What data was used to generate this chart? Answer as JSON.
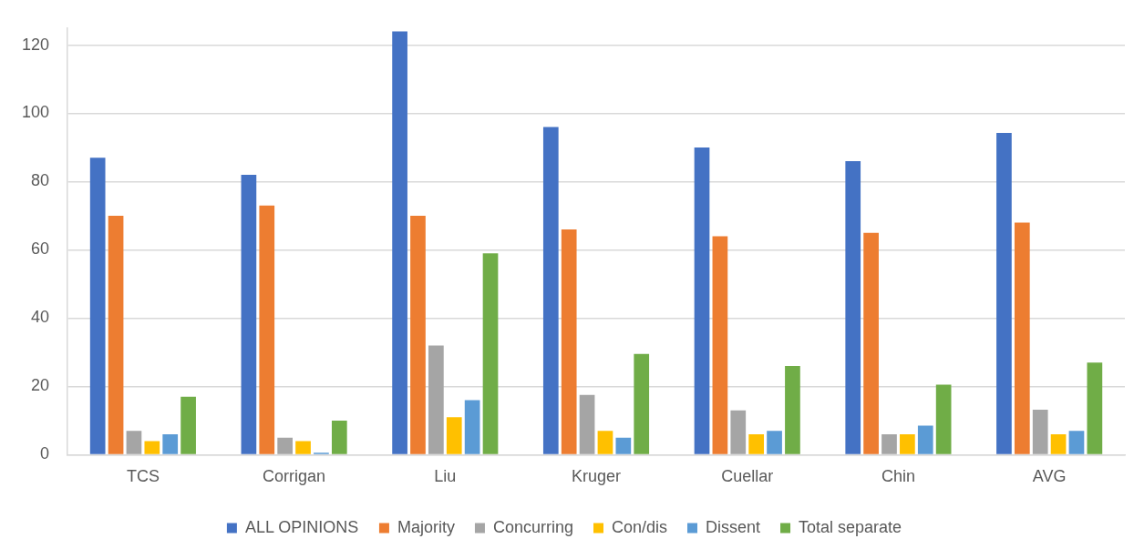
{
  "chart_data": {
    "type": "bar",
    "categories": [
      "TCS",
      "Corrigan",
      "Liu",
      "Kruger",
      "Cuellar",
      "Chin",
      "AVG"
    ],
    "series": [
      {
        "name": "ALL OPINIONS",
        "color": "#4472c4",
        "values": [
          87,
          82,
          124,
          96,
          90,
          86,
          94.3
        ]
      },
      {
        "name": "Majority",
        "color": "#ed7d31",
        "values": [
          70,
          73,
          70,
          66,
          64,
          65,
          68
        ]
      },
      {
        "name": "Concurring",
        "color": "#a5a5a5",
        "values": [
          7,
          5,
          32,
          17.5,
          13,
          6,
          13.2
        ]
      },
      {
        "name": "Con/dis",
        "color": "#ffc000",
        "values": [
          4,
          4,
          11,
          7,
          6,
          6,
          6
        ]
      },
      {
        "name": "Dissent",
        "color": "#5b9bd5",
        "values": [
          6,
          0.6,
          16,
          5,
          7,
          8.5,
          7
        ]
      },
      {
        "name": "Total separate",
        "color": "#70ad47",
        "values": [
          17,
          10,
          59,
          29.5,
          26,
          20.5,
          27
        ]
      }
    ],
    "ylim": [
      0,
      125
    ],
    "yticks": [
      0,
      20,
      40,
      60,
      80,
      100,
      120
    ],
    "grid": "y",
    "legend": "bottom"
  }
}
